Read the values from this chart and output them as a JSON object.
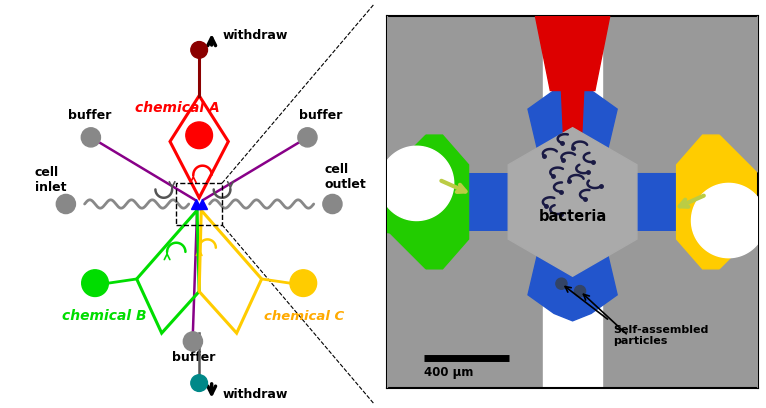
{
  "bg_color": "#ffffff",
  "colors": {
    "red": "#ff0000",
    "dark_red": "#8b0000",
    "green": "#00dd00",
    "yellow": "#ffcc00",
    "orange_yellow": "#ffaa00",
    "blue": "#2255cc",
    "purple": "#880088",
    "gray_circle": "#888888",
    "dark_gray": "#555555",
    "teal": "#008888",
    "light_green_arrow": "#bbcc44",
    "panel_gray": "#999999",
    "panel_dark_gray": "#7a7a7a",
    "hex_gray": "#a0a0a0",
    "bacteria_color": "#1a1a44"
  },
  "labels": {
    "withdraw_top": "withdraw",
    "withdraw_bottom": "withdraw",
    "chemical_a": "chemical A",
    "chemical_b": "chemical B",
    "chemical_c": "chemical C",
    "buffer_top_left": "buffer",
    "buffer_top_right": "buffer",
    "buffer_bottom": "buffer",
    "cell_inlet": "cell\ninlet",
    "cell_outlet": "cell\noutlet",
    "bacteria": "bacteria",
    "self_assembled": "Self-assembled\nparticles",
    "scale_bar": "400 μm"
  }
}
